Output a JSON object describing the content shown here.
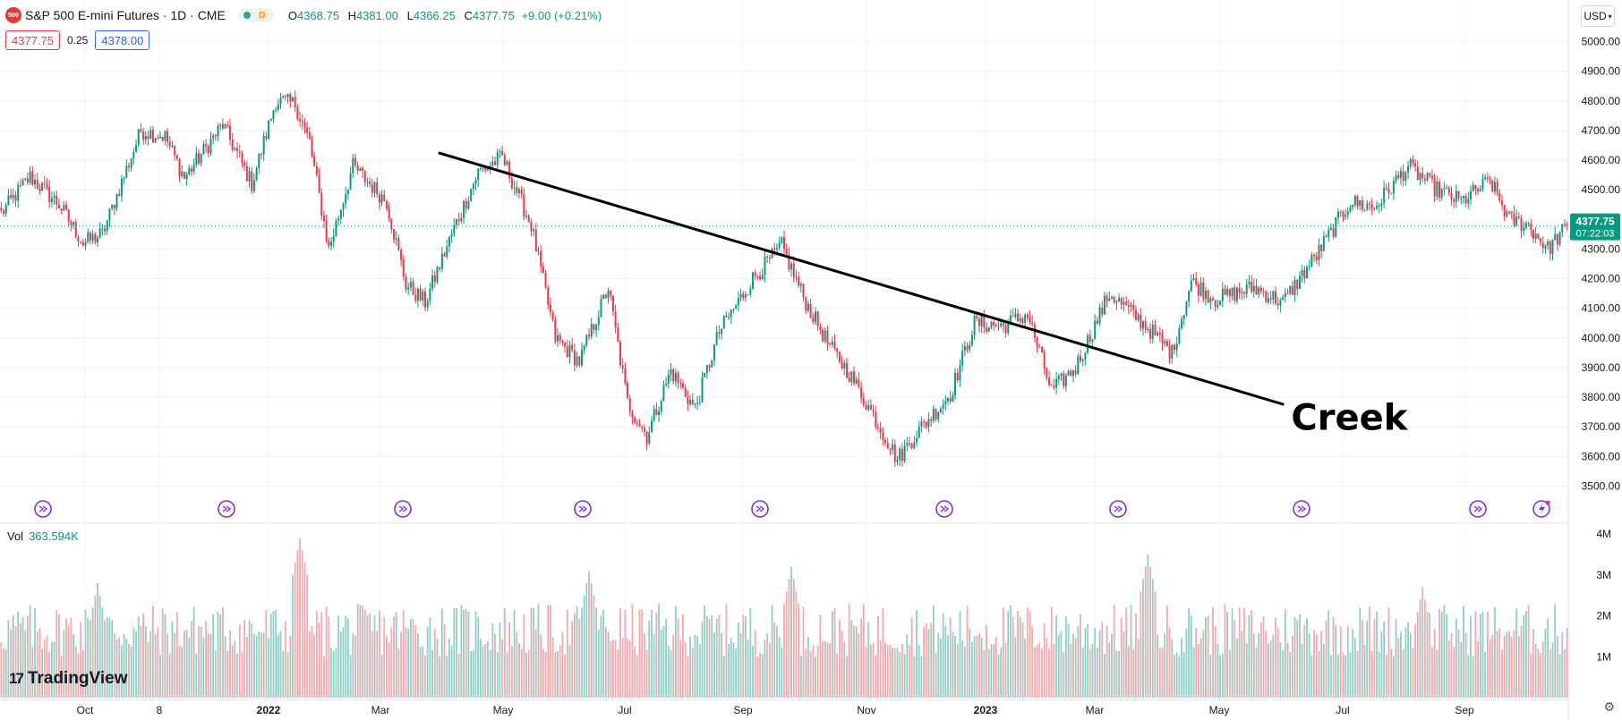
{
  "header": {
    "symbol_badge": "500",
    "title": "S&P 500 E-mini Futures · 1D · CME",
    "d_badge": "D",
    "ohlc": {
      "o_label": "O",
      "o": "4368.75",
      "h_label": "H",
      "h": "4381.00",
      "l_label": "L",
      "l": "4366.25",
      "c_label": "C",
      "c": "4377.75",
      "change": "+9.00 (+0.21%)"
    }
  },
  "quote": {
    "sell": "4377.75",
    "spread": "0.25",
    "buy": "4378.00"
  },
  "currency": "USD",
  "volume_label": {
    "name": "Vol",
    "value": "363.594K"
  },
  "brand": "TradingView",
  "colors": {
    "up": "#089981",
    "down": "#f23645",
    "vol_up": "#8fd0c6",
    "vol_down": "#f5a9ad",
    "event": "#7b2ff7",
    "grid": "#f0f3fa"
  },
  "icons": [
    "gear-icon",
    "chevron-down-icon",
    "flash-icon",
    "economic-event-icon"
  ],
  "chart_data": [
    {
      "type": "candlestick",
      "ylim": [
        3450,
        5050
      ],
      "yticks": [
        "5000.00",
        "4900.00",
        "4800.00",
        "4700.00",
        "4600.00",
        "4500.00",
        "4400.00",
        "4300.00",
        "4200.00",
        "4100.00",
        "4000.00",
        "3900.00",
        "3800.00",
        "3700.00",
        "3600.00",
        "3500.00"
      ],
      "ytick_values": [
        5000,
        4900,
        4800,
        4700,
        4600,
        4500,
        4400,
        4300,
        4200,
        4100,
        4000,
        3900,
        3800,
        3700,
        3600,
        3500
      ],
      "xticks": [
        "Oct",
        "8",
        "2022",
        "Mar",
        "May",
        "Jul",
        "Sep",
        "Nov",
        "2023",
        "Mar",
        "May",
        "Jul",
        "Sep"
      ],
      "last_price": {
        "value": 4377.75,
        "label": "4377.75",
        "countdown": "07:22:03"
      },
      "anchors": [
        [
          0,
          4420
        ],
        [
          12,
          4545
        ],
        [
          24,
          4450
        ],
        [
          34,
          4320
        ],
        [
          42,
          4350
        ],
        [
          58,
          4700
        ],
        [
          68,
          4680
        ],
        [
          76,
          4540
        ],
        [
          92,
          4720
        ],
        [
          104,
          4520
        ],
        [
          114,
          4800
        ],
        [
          122,
          4790
        ],
        [
          128,
          4660
        ],
        [
          136,
          4300
        ],
        [
          146,
          4580
        ],
        [
          160,
          4460
        ],
        [
          168,
          4180
        ],
        [
          176,
          4120
        ],
        [
          188,
          4370
        ],
        [
          198,
          4560
        ],
        [
          208,
          4610
        ],
        [
          220,
          4380
        ],
        [
          230,
          4000
        ],
        [
          240,
          3920
        ],
        [
          252,
          4170
        ],
        [
          260,
          3780
        ],
        [
          268,
          3670
        ],
        [
          278,
          3890
        ],
        [
          288,
          3760
        ],
        [
          298,
          4020
        ],
        [
          312,
          4200
        ],
        [
          324,
          4310
        ],
        [
          334,
          4120
        ],
        [
          344,
          3970
        ],
        [
          352,
          3880
        ],
        [
          362,
          3740
        ],
        [
          372,
          3590
        ],
        [
          380,
          3680
        ],
        [
          394,
          3810
        ],
        [
          404,
          4050
        ],
        [
          416,
          4040
        ],
        [
          426,
          4080
        ],
        [
          436,
          3820
        ],
        [
          446,
          3900
        ],
        [
          460,
          4150
        ],
        [
          474,
          4050
        ],
        [
          486,
          3950
        ],
        [
          494,
          4190
        ],
        [
          504,
          4130
        ],
        [
          520,
          4170
        ],
        [
          532,
          4120
        ],
        [
          546,
          4280
        ],
        [
          560,
          4460
        ],
        [
          570,
          4440
        ],
        [
          584,
          4580
        ],
        [
          596,
          4500
        ],
        [
          606,
          4460
        ],
        [
          618,
          4530
        ],
        [
          626,
          4400
        ],
        [
          634,
          4380
        ],
        [
          642,
          4300
        ],
        [
          650,
          4377.75
        ]
      ]
    },
    {
      "type": "bar",
      "name": "Vol",
      "ylim": [
        0,
        4000000
      ],
      "yticks": [
        "4M",
        "3M",
        "2M",
        "1M"
      ],
      "ytick_values": [
        4000000,
        3000000,
        2000000,
        1000000
      ],
      "peaks": [
        [
          40,
          2800000
        ],
        [
          124,
          3900000
        ],
        [
          244,
          3100000
        ],
        [
          328,
          3200000
        ],
        [
          476,
          3500000
        ],
        [
          590,
          2700000
        ]
      ]
    }
  ],
  "trendline": {
    "from": [
      182,
      4625
    ],
    "to": [
      533,
      3775
    ]
  },
  "annotation": "Creek",
  "event_markers_count": 10
}
